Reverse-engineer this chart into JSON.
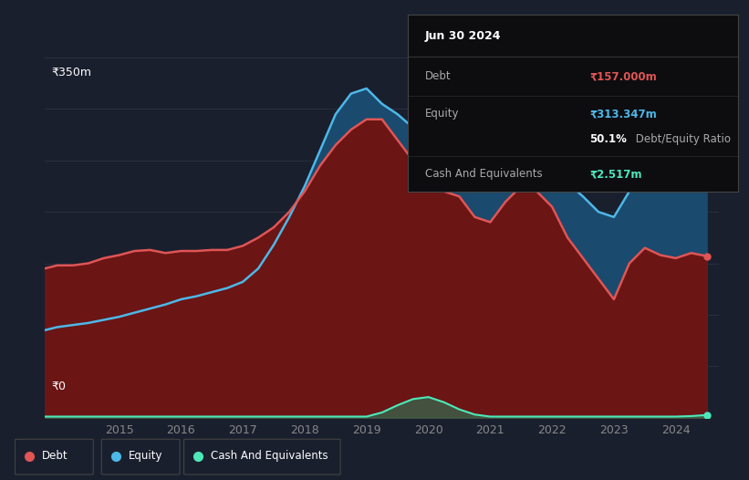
{
  "background_color": "#1a1f2e",
  "plot_bg_color": "#1a1f2e",
  "ylabel_top": "₹350m",
  "ylabel_bottom": "₹0",
  "ylim": [
    0,
    350
  ],
  "xlim": [
    2013.8,
    2024.7
  ],
  "debt_color": "#e05555",
  "equity_color": "#4db8e8",
  "cash_color": "#4de8b8",
  "debt_fill_color": "#6B1515",
  "equity_fill_color": "#1a4a6e",
  "cash_fill_color": "#2a7a5a",
  "grid_color": "#2a2f40",
  "tick_color": "#888888",
  "info_title": "Jun 30 2024",
  "info_debt_label": "Debt",
  "info_debt_value": "₹157.000m",
  "info_equity_label": "Equity",
  "info_equity_value": "₹313.347m",
  "info_de_bold": "50.1%",
  "info_de_rest": " Debt/Equity Ratio",
  "info_cash_label": "Cash And Equivalents",
  "info_cash_value": "₹2.517m",
  "legend_items": [
    {
      "label": "Debt",
      "color": "#e05555"
    },
    {
      "label": "Equity",
      "color": "#4db8e8"
    },
    {
      "label": "Cash And Equivalents",
      "color": "#4de8b8"
    }
  ],
  "years": [
    2013.8,
    2014.0,
    2014.25,
    2014.5,
    2014.75,
    2015.0,
    2015.25,
    2015.5,
    2015.75,
    2016.0,
    2016.25,
    2016.5,
    2016.75,
    2017.0,
    2017.25,
    2017.5,
    2017.75,
    2018.0,
    2018.25,
    2018.5,
    2018.75,
    2019.0,
    2019.25,
    2019.5,
    2019.75,
    2020.0,
    2020.25,
    2020.5,
    2020.75,
    2021.0,
    2021.25,
    2021.5,
    2021.75,
    2022.0,
    2022.25,
    2022.5,
    2022.75,
    2023.0,
    2023.25,
    2023.5,
    2023.75,
    2024.0,
    2024.25,
    2024.5
  ],
  "debt": [
    145,
    148,
    148,
    150,
    155,
    158,
    162,
    163,
    160,
    162,
    162,
    163,
    163,
    167,
    175,
    185,
    200,
    220,
    245,
    265,
    280,
    290,
    290,
    270,
    250,
    230,
    220,
    215,
    195,
    190,
    210,
    225,
    220,
    205,
    175,
    155,
    135,
    115,
    150,
    165,
    158,
    155,
    160,
    157
  ],
  "equity": [
    85,
    88,
    90,
    92,
    95,
    98,
    102,
    106,
    110,
    115,
    118,
    122,
    126,
    132,
    145,
    168,
    195,
    225,
    260,
    295,
    315,
    320,
    305,
    295,
    282,
    275,
    270,
    268,
    265,
    262,
    260,
    255,
    248,
    242,
    228,
    215,
    200,
    195,
    220,
    255,
    278,
    295,
    310,
    313
  ],
  "cash": [
    1,
    1,
    1,
    1,
    1,
    1,
    1,
    1,
    1,
    1,
    1,
    1,
    1,
    1,
    1,
    1,
    1,
    1,
    1,
    1,
    1,
    1,
    5,
    12,
    18,
    20,
    15,
    8,
    3,
    1,
    1,
    1,
    1,
    1,
    1,
    1,
    1,
    1,
    1,
    1,
    1,
    1,
    1.5,
    2.5
  ]
}
